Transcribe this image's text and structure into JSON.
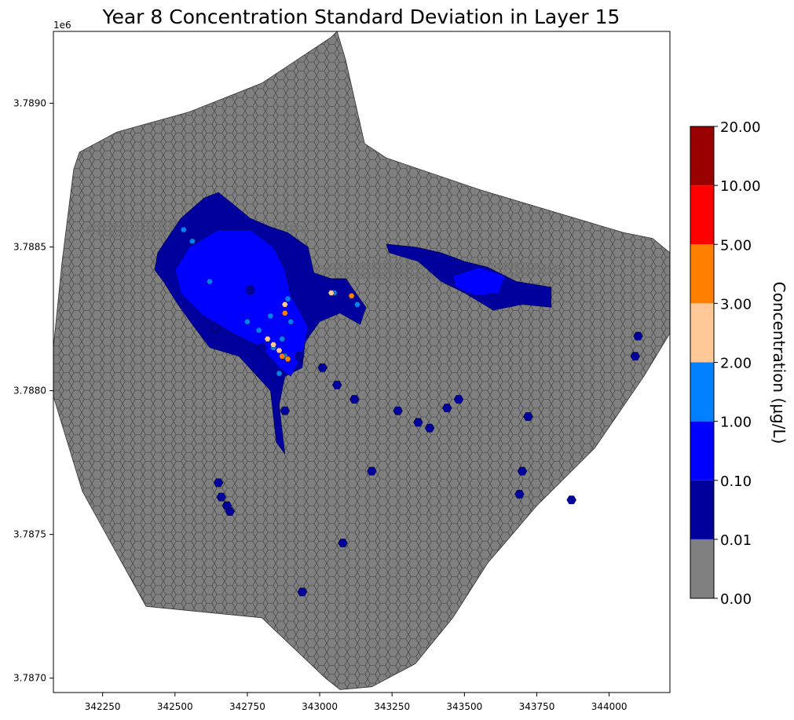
{
  "chart_data": {
    "type": "heatmap",
    "title": "Year 8 Concentration Standard Deviation in Layer 15",
    "x_ticks": [
      342250,
      342500,
      342750,
      343000,
      343250,
      343500,
      343750,
      344000
    ],
    "x_tick_labels": [
      "342250",
      "342500",
      "342750",
      "343000",
      "343250",
      "343500",
      "343750",
      "344000"
    ],
    "y_ticks": [
      3.787,
      3.7875,
      3.788,
      3.7885,
      3.789
    ],
    "y_tick_labels": [
      "3.7870",
      "3.7875",
      "3.7880",
      "3.7885",
      "3.7890"
    ],
    "y_offset_label": "1e6",
    "xlim": [
      342080,
      344210
    ],
    "ylim": [
      3.78695,
      3.78925
    ],
    "colorbar": {
      "label": "Concentration (µg/L)",
      "boundaries": [
        "0.00",
        "0.01",
        "0.10",
        "1.00",
        "2.00",
        "3.00",
        "5.00",
        "10.00",
        "20.00"
      ],
      "colors": [
        "#808080",
        "#00009c",
        "#0000ff",
        "#0080ff",
        "#ffc896",
        "#ff8000",
        "#ff0000",
        "#990000"
      ]
    },
    "domain_polygon": [
      [
        342150,
        3.78877
      ],
      [
        342170,
        3.78883
      ],
      [
        342300,
        3.7889
      ],
      [
        342550,
        3.78897
      ],
      [
        342800,
        3.78907
      ],
      [
        343040,
        3.78923
      ],
      [
        343060,
        3.78925
      ],
      [
        343090,
        3.78915
      ],
      [
        343155,
        3.78886
      ],
      [
        343230,
        3.78881
      ],
      [
        343550,
        3.7887
      ],
      [
        344050,
        3.78855
      ],
      [
        344150,
        3.78853
      ],
      [
        344210,
        3.78848
      ],
      [
        344210,
        3.7882
      ],
      [
        344120,
        3.78805
      ],
      [
        343950,
        3.7878
      ],
      [
        343750,
        3.7876
      ],
      [
        343580,
        3.7874
      ],
      [
        343460,
        3.78721
      ],
      [
        343330,
        3.78705
      ],
      [
        343180,
        3.78697
      ],
      [
        343070,
        3.78696
      ],
      [
        343020,
        3.787
      ],
      [
        342800,
        3.78721
      ],
      [
        342400,
        3.78725
      ],
      [
        342180,
        3.78765
      ],
      [
        342080,
        3.78798
      ],
      [
        342080,
        3.78815
      ],
      [
        342110,
        3.78845
      ]
    ],
    "plumes": [
      {
        "level": 1,
        "points": [
          [
            342440,
            3.78848
          ],
          [
            342520,
            3.7886
          ],
          [
            342600,
            3.78867
          ],
          [
            342650,
            3.78869
          ],
          [
            342700,
            3.78865
          ],
          [
            342760,
            3.7886
          ],
          [
            342830,
            3.78857
          ],
          [
            342890,
            3.78855
          ],
          [
            342960,
            3.7885
          ],
          [
            342980,
            3.78841
          ],
          [
            343040,
            3.78839
          ],
          [
            343090,
            3.78839
          ],
          [
            343160,
            3.78829
          ],
          [
            343140,
            3.78823
          ],
          [
            343070,
            3.78827
          ],
          [
            343000,
            3.78824
          ],
          [
            342950,
            3.78817
          ],
          [
            342940,
            3.78808
          ],
          [
            342880,
            3.78805
          ],
          [
            342860,
            3.78795
          ],
          [
            342880,
            3.78778
          ],
          [
            342850,
            3.78782
          ],
          [
            342830,
            3.788
          ],
          [
            342720,
            3.78812
          ],
          [
            342620,
            3.78815
          ],
          [
            342560,
            3.78823
          ],
          [
            342510,
            3.7883
          ],
          [
            342460,
            3.78838
          ],
          [
            342430,
            3.78842
          ]
        ]
      },
      {
        "level": 2,
        "points": [
          [
            342550,
            3.7885
          ],
          [
            342650,
            3.78856
          ],
          [
            342760,
            3.78856
          ],
          [
            342840,
            3.7885
          ],
          [
            342880,
            3.78842
          ],
          [
            342900,
            3.78833
          ],
          [
            342930,
            3.78828
          ],
          [
            342960,
            3.78822
          ],
          [
            342940,
            3.78812
          ],
          [
            342900,
            3.78805
          ],
          [
            342860,
            3.78808
          ],
          [
            342800,
            3.78815
          ],
          [
            342700,
            3.7882
          ],
          [
            342600,
            3.78826
          ],
          [
            342520,
            3.78834
          ],
          [
            342500,
            3.78842
          ]
        ]
      },
      {
        "level": 1,
        "points": [
          [
            343230,
            3.78851
          ],
          [
            343330,
            3.7885
          ],
          [
            343420,
            3.78848
          ],
          [
            343500,
            3.78845
          ],
          [
            343580,
            3.78843
          ],
          [
            343680,
            3.78838
          ],
          [
            343800,
            3.78836
          ],
          [
            343800,
            3.78829
          ],
          [
            343700,
            3.7883
          ],
          [
            343600,
            3.78828
          ],
          [
            343500,
            3.78834
          ],
          [
            343420,
            3.78838
          ],
          [
            343340,
            3.78845
          ],
          [
            343240,
            3.78848
          ]
        ]
      },
      {
        "level": 2,
        "points": [
          [
            343460,
            3.7884
          ],
          [
            343550,
            3.78843
          ],
          [
            343640,
            3.7884
          ],
          [
            343620,
            3.78834
          ],
          [
            343540,
            3.78833
          ],
          [
            343470,
            3.78836
          ]
        ]
      }
    ],
    "hot_cells": [
      {
        "level": 3,
        "x": 342530,
        "y": 3.78856
      },
      {
        "level": 3,
        "x": 342560,
        "y": 3.78852
      },
      {
        "level": 3,
        "x": 342620,
        "y": 3.78838
      },
      {
        "level": 3,
        "x": 342750,
        "y": 3.78824
      },
      {
        "level": 3,
        "x": 342790,
        "y": 3.78821
      },
      {
        "level": 3,
        "x": 342830,
        "y": 3.78826
      },
      {
        "level": 3,
        "x": 342870,
        "y": 3.78818
      },
      {
        "level": 3,
        "x": 342890,
        "y": 3.78832
      },
      {
        "level": 3,
        "x": 342900,
        "y": 3.78824
      },
      {
        "level": 3,
        "x": 342880,
        "y": 3.78812
      },
      {
        "level": 3,
        "x": 342860,
        "y": 3.78806
      },
      {
        "level": 3,
        "x": 342840,
        "y": 3.78815
      },
      {
        "level": 3,
        "x": 343050,
        "y": 3.78834
      },
      {
        "level": 3,
        "x": 343130,
        "y": 3.7883
      },
      {
        "level": 4,
        "x": 342820,
        "y": 3.78818
      },
      {
        "level": 4,
        "x": 342840,
        "y": 3.78816
      },
      {
        "level": 4,
        "x": 342860,
        "y": 3.78814
      },
      {
        "level": 4,
        "x": 342880,
        "y": 3.7883
      },
      {
        "level": 4,
        "x": 343040,
        "y": 3.78834
      },
      {
        "level": 5,
        "x": 342870,
        "y": 3.78812
      },
      {
        "level": 5,
        "x": 342890,
        "y": 3.78811
      },
      {
        "level": 5,
        "x": 342880,
        "y": 3.78827
      },
      {
        "level": 5,
        "x": 343110,
        "y": 3.78833
      }
    ],
    "isolated_cells": [
      [
        342930,
        3.78812
      ],
      [
        343010,
        3.78808
      ],
      [
        343060,
        3.78802
      ],
      [
        343120,
        3.78797
      ],
      [
        343270,
        3.78793
      ],
      [
        343340,
        3.78789
      ],
      [
        343380,
        3.78787
      ],
      [
        343440,
        3.78794
      ],
      [
        343480,
        3.78797
      ],
      [
        343720,
        3.78791
      ],
      [
        343180,
        3.78772
      ],
      [
        343700,
        3.78772
      ],
      [
        343690,
        3.78764
      ],
      [
        343870,
        3.78762
      ],
      [
        344100,
        3.78819
      ],
      [
        344090,
        3.78812
      ],
      [
        342650,
        3.78768
      ],
      [
        342660,
        3.78763
      ],
      [
        342680,
        3.7876
      ],
      [
        342690,
        3.78758
      ],
      [
        343080,
        3.78747
      ],
      [
        342940,
        3.7873
      ],
      [
        342760,
        3.78835
      ],
      [
        342880,
        3.78793
      ],
      [
        342800,
        3.78815
      ],
      [
        342640,
        3.78822
      ]
    ]
  }
}
